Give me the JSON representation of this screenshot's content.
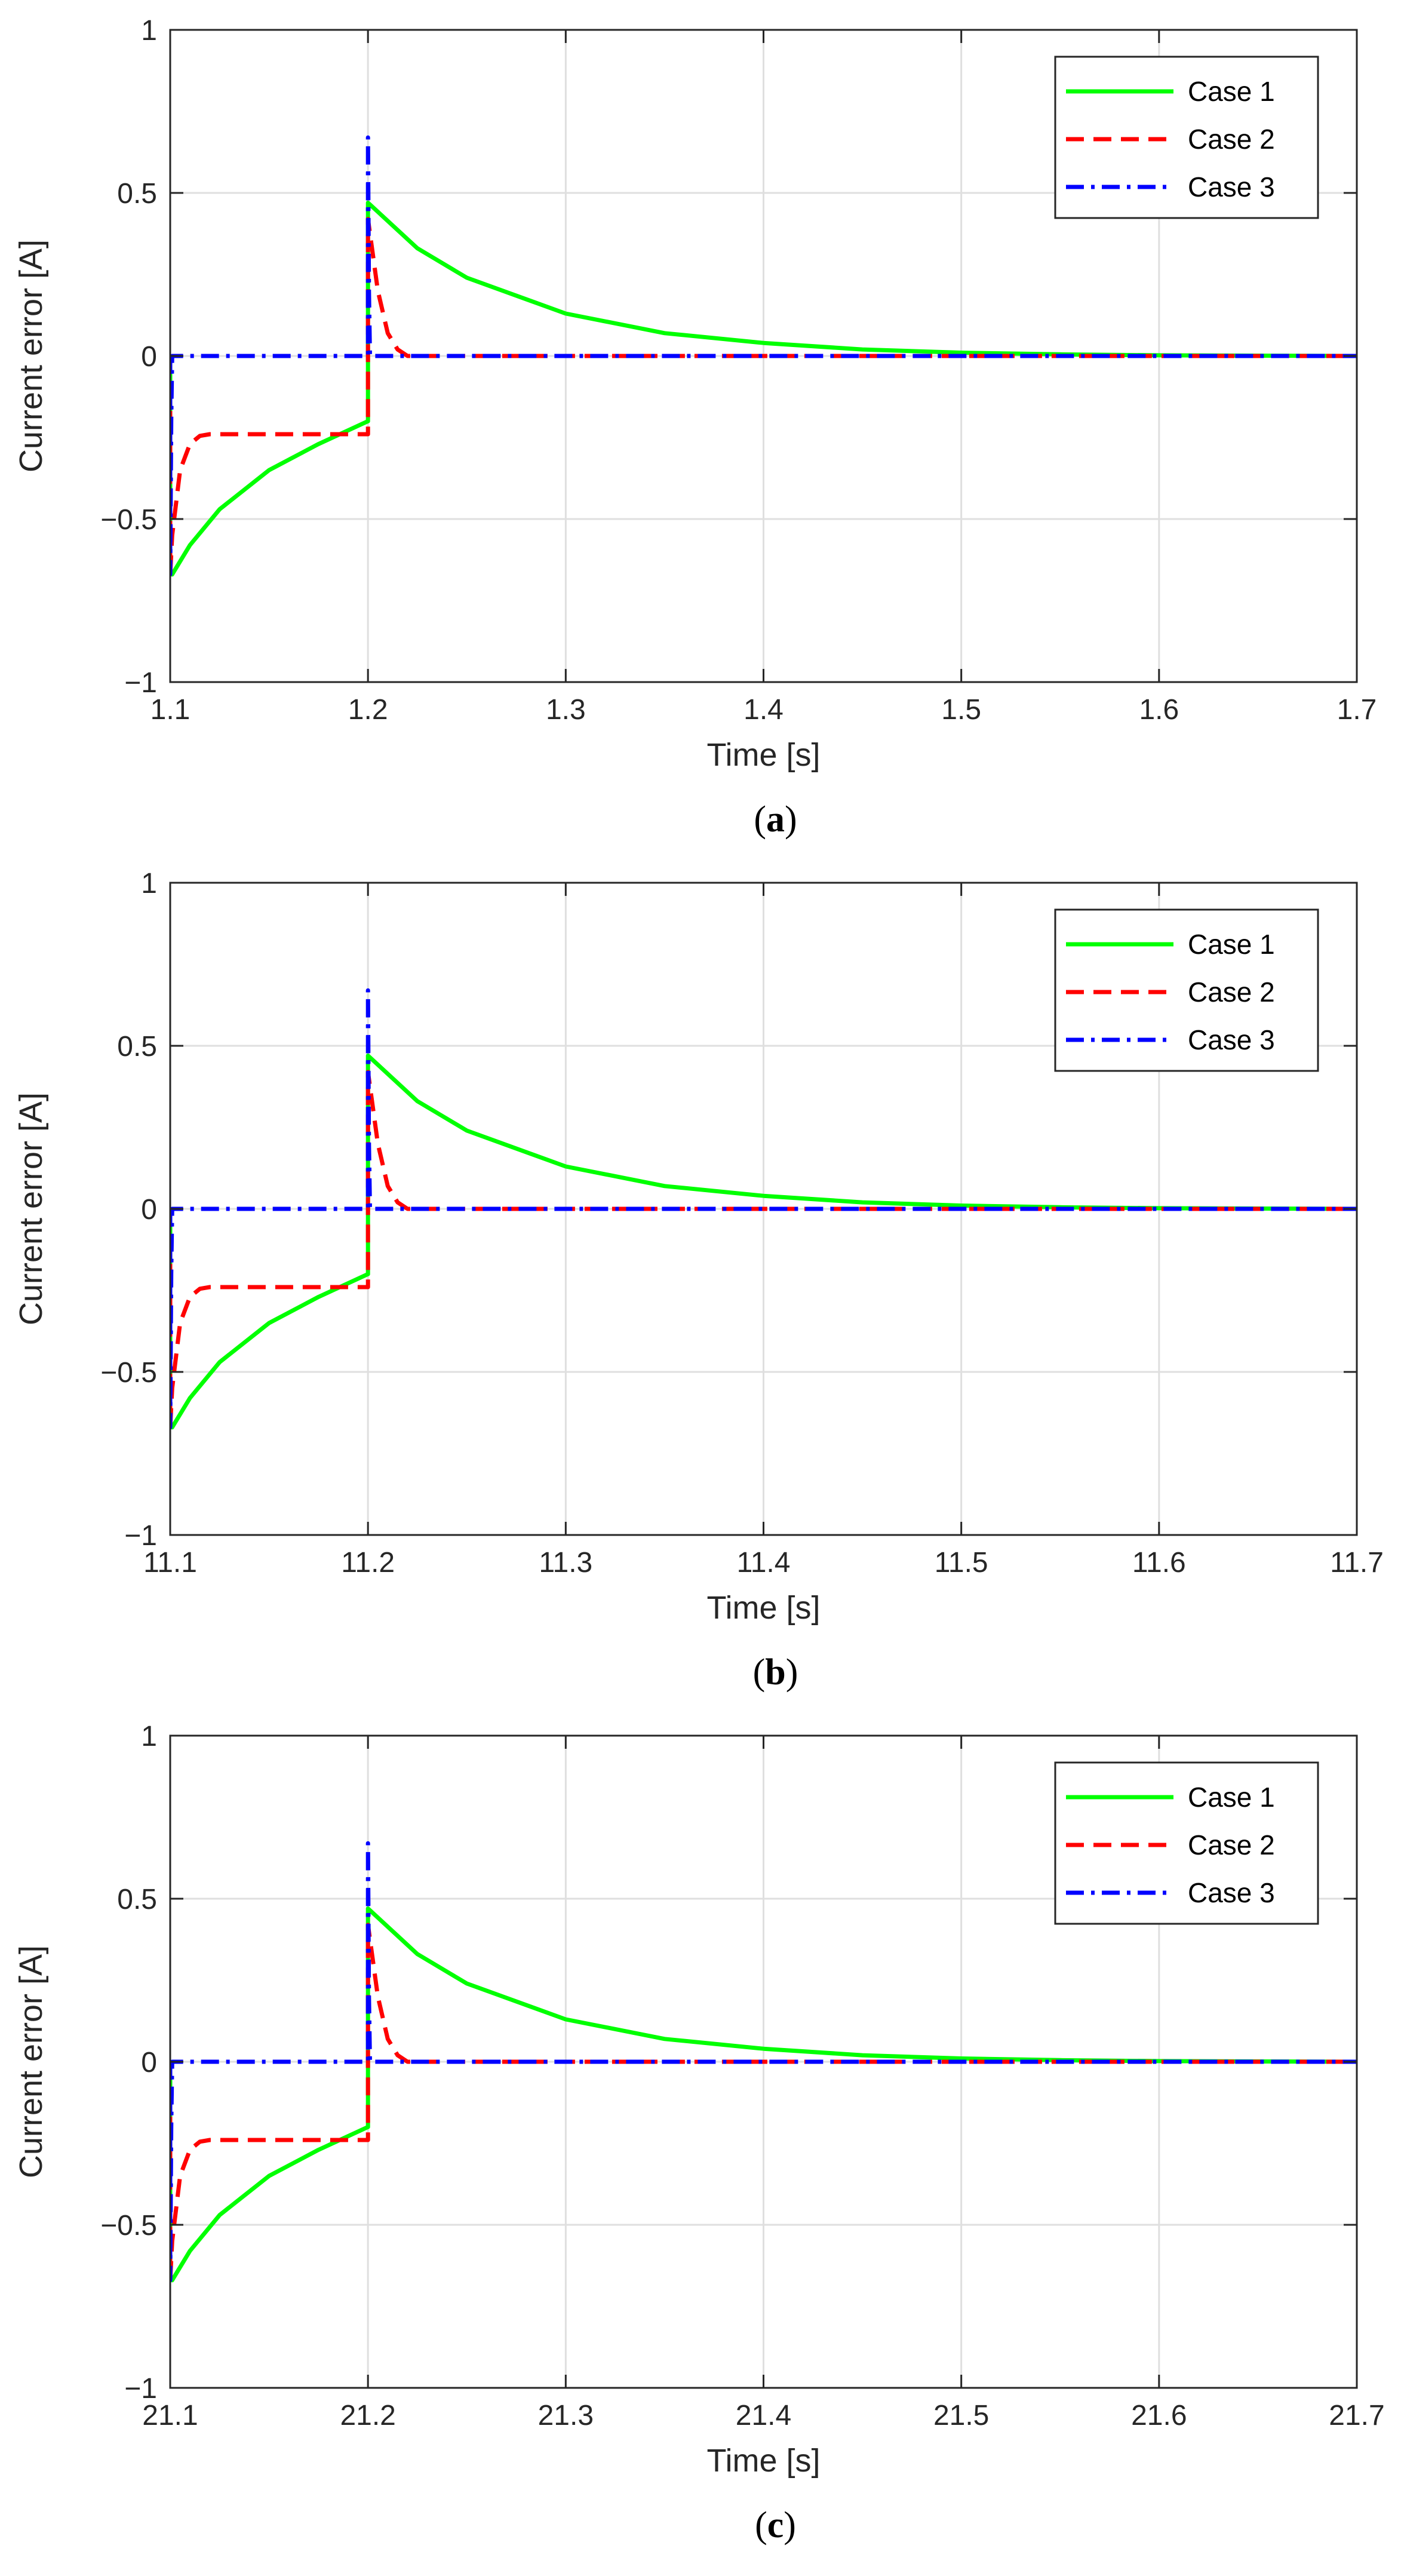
{
  "chart_data": [
    {
      "type": "line",
      "caption_letter": "a",
      "xlabel": "Time [s]",
      "ylabel": "Current error [A]",
      "xlim": [
        1.1,
        1.7
      ],
      "ylim": [
        -1,
        1
      ],
      "xticks": [
        1.1,
        1.2,
        1.3,
        1.4,
        1.5,
        1.6,
        1.7
      ],
      "xtick_labels": [
        "1.1",
        "1.2",
        "1.3",
        "1.4",
        "1.5",
        "1.6",
        "1.7"
      ],
      "yticks": [
        -1,
        -0.5,
        0,
        0.5,
        1
      ],
      "ytick_labels": [
        "−1",
        "−0.5",
        "0",
        "0.5",
        "1"
      ],
      "grid": true,
      "legend_position": "top-right",
      "series": [
        {
          "name": "Case 1",
          "color": "#00ff00",
          "style": "solid",
          "x": [
            1.1,
            1.1,
            1.101,
            1.11,
            1.125,
            1.15,
            1.175,
            1.2,
            1.2,
            1.2,
            1.225,
            1.25,
            1.3,
            1.35,
            1.4,
            1.45,
            1.5,
            1.55,
            1.6,
            1.65,
            1.7
          ],
          "y": [
            0,
            -0.67,
            -0.67,
            -0.58,
            -0.47,
            -0.35,
            -0.27,
            -0.2,
            0,
            0.47,
            0.33,
            0.24,
            0.13,
            0.07,
            0.04,
            0.02,
            0.01,
            0.005,
            0.002,
            0.001,
            0
          ]
        },
        {
          "name": "Case 2",
          "color": "#ff0000",
          "style": "dashed",
          "x": [
            1.1,
            1.1,
            1.101,
            1.105,
            1.11,
            1.115,
            1.12,
            1.15,
            1.2,
            1.2,
            1.2,
            1.205,
            1.21,
            1.215,
            1.22,
            1.7
          ],
          "y": [
            0,
            -0.67,
            -0.55,
            -0.35,
            -0.27,
            -0.245,
            -0.24,
            -0.24,
            -0.24,
            0,
            0.42,
            0.2,
            0.07,
            0.02,
            0,
            0
          ]
        },
        {
          "name": "Case 3",
          "color": "#0000ff",
          "style": "dashdot",
          "x": [
            1.1,
            1.1,
            1.1005,
            1.101,
            1.2,
            1.2,
            1.2005,
            1.201,
            1.7
          ],
          "y": [
            0,
            -0.67,
            -0.2,
            0,
            0,
            0.67,
            0.2,
            0,
            0
          ]
        }
      ]
    },
    {
      "type": "line",
      "caption_letter": "b",
      "xlabel": "Time [s]",
      "ylabel": "Current error [A]",
      "xlim": [
        11.1,
        11.7
      ],
      "ylim": [
        -1,
        1
      ],
      "xticks": [
        11.1,
        11.2,
        11.3,
        11.4,
        11.5,
        11.6,
        11.7
      ],
      "xtick_labels": [
        "11.1",
        "11.2",
        "11.3",
        "11.4",
        "11.5",
        "11.6",
        "11.7"
      ],
      "yticks": [
        -1,
        -0.5,
        0,
        0.5,
        1
      ],
      "ytick_labels": [
        "−1",
        "−0.5",
        "0",
        "0.5",
        "1"
      ],
      "grid": true,
      "legend_position": "top-right",
      "series": [
        {
          "name": "Case 1",
          "color": "#00ff00",
          "style": "solid",
          "x": [
            11.1,
            11.1,
            11.101,
            11.11,
            11.125,
            11.15,
            11.175,
            11.2,
            11.2,
            11.2,
            11.225,
            11.25,
            11.3,
            11.35,
            11.4,
            11.45,
            11.5,
            11.55,
            11.6,
            11.65,
            11.7
          ],
          "y": [
            0,
            -0.67,
            -0.67,
            -0.58,
            -0.47,
            -0.35,
            -0.27,
            -0.2,
            0,
            0.47,
            0.33,
            0.24,
            0.13,
            0.07,
            0.04,
            0.02,
            0.01,
            0.005,
            0.002,
            0.001,
            0
          ]
        },
        {
          "name": "Case 2",
          "color": "#ff0000",
          "style": "dashed",
          "x": [
            11.1,
            11.1,
            11.101,
            11.105,
            11.11,
            11.115,
            11.12,
            11.15,
            11.2,
            11.2,
            11.2,
            11.205,
            11.21,
            11.215,
            11.22,
            11.7
          ],
          "y": [
            0,
            -0.67,
            -0.55,
            -0.35,
            -0.27,
            -0.245,
            -0.24,
            -0.24,
            -0.24,
            0,
            0.42,
            0.2,
            0.07,
            0.02,
            0,
            0
          ]
        },
        {
          "name": "Case 3",
          "color": "#0000ff",
          "style": "dashdot",
          "x": [
            11.1,
            11.1,
            11.1005,
            11.101,
            11.2,
            11.2,
            11.2005,
            11.201,
            11.7
          ],
          "y": [
            0,
            -0.67,
            -0.2,
            0,
            0,
            0.67,
            0.2,
            0,
            0
          ]
        }
      ]
    },
    {
      "type": "line",
      "caption_letter": "c",
      "xlabel": "Time [s]",
      "ylabel": "Current error [A]",
      "xlim": [
        21.1,
        21.7
      ],
      "ylim": [
        -1,
        1
      ],
      "xticks": [
        21.1,
        21.2,
        21.3,
        21.4,
        21.5,
        21.6,
        21.7
      ],
      "xtick_labels": [
        "21.1",
        "21.2",
        "21.3",
        "21.4",
        "21.5",
        "21.6",
        "21.7"
      ],
      "yticks": [
        -1,
        -0.5,
        0,
        0.5,
        1
      ],
      "ytick_labels": [
        "−1",
        "−0.5",
        "0",
        "0.5",
        "1"
      ],
      "grid": true,
      "legend_position": "top-right",
      "series": [
        {
          "name": "Case 1",
          "color": "#00ff00",
          "style": "solid",
          "x": [
            21.1,
            21.1,
            21.101,
            21.11,
            21.125,
            21.15,
            21.175,
            21.2,
            21.2,
            21.2,
            21.225,
            21.25,
            21.3,
            21.35,
            21.4,
            21.45,
            21.5,
            21.55,
            21.6,
            21.65,
            21.7
          ],
          "y": [
            0,
            -0.67,
            -0.67,
            -0.58,
            -0.47,
            -0.35,
            -0.27,
            -0.2,
            0,
            0.47,
            0.33,
            0.24,
            0.13,
            0.07,
            0.04,
            0.02,
            0.01,
            0.005,
            0.002,
            0.001,
            0
          ]
        },
        {
          "name": "Case 2",
          "color": "#ff0000",
          "style": "dashed",
          "x": [
            21.1,
            21.1,
            21.101,
            21.105,
            21.11,
            21.115,
            21.12,
            21.15,
            21.2,
            21.2,
            21.2,
            21.205,
            21.21,
            21.215,
            21.22,
            21.7
          ],
          "y": [
            0,
            -0.67,
            -0.55,
            -0.35,
            -0.27,
            -0.245,
            -0.24,
            -0.24,
            -0.24,
            0,
            0.42,
            0.2,
            0.07,
            0.02,
            0,
            0
          ]
        },
        {
          "name": "Case 3",
          "color": "#0000ff",
          "style": "dashdot",
          "x": [
            21.1,
            21.1,
            21.1005,
            21.101,
            21.2,
            21.2,
            21.2005,
            21.201,
            21.7
          ],
          "y": [
            0,
            -0.67,
            -0.2,
            0,
            0,
            0.67,
            0.2,
            0,
            0
          ]
        }
      ]
    }
  ]
}
